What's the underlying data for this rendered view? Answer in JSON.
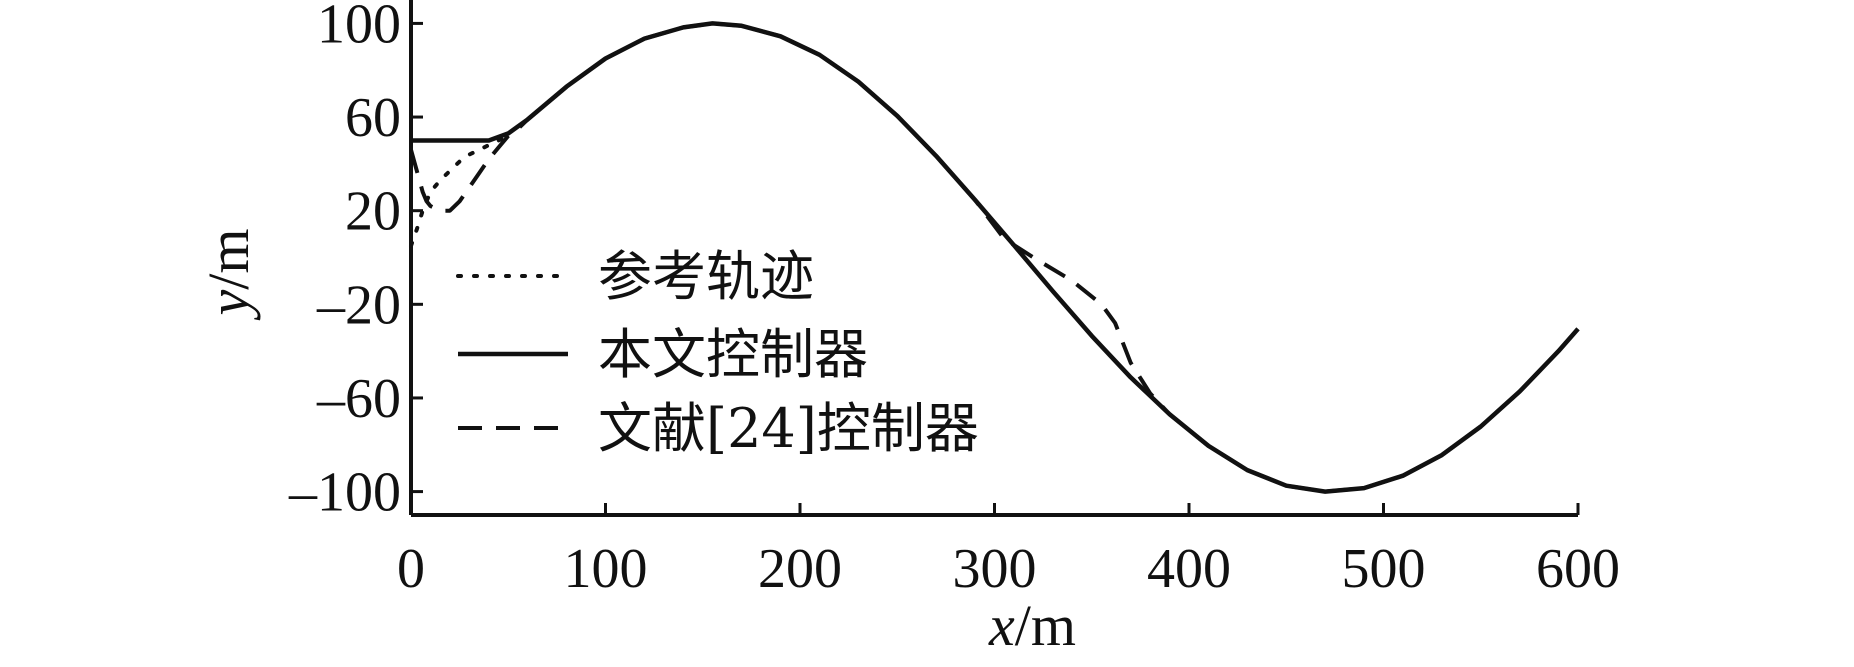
{
  "chart_data": {
    "type": "line",
    "xlabel": "x/m",
    "ylabel": "y/m",
    "xlim": [
      0,
      600
    ],
    "ylim": [
      -110,
      110
    ],
    "xticks": [
      0,
      100,
      200,
      300,
      400,
      500,
      600
    ],
    "yticks": [
      100,
      60,
      20,
      -20,
      -60,
      -100
    ],
    "grid": false,
    "legend_position": "lower-left",
    "series": [
      {
        "name": "参考轨迹",
        "style": "dotted",
        "color": "#111111",
        "x": [
          0,
          3,
          6,
          9,
          12,
          15,
          20,
          25,
          30,
          35,
          40,
          45,
          50
        ],
        "y": [
          5,
          12,
          20,
          26,
          30,
          33,
          37,
          41,
          44,
          46,
          48,
          50,
          52
        ]
      },
      {
        "name": "本文控制器",
        "style": "solid",
        "color": "#111111",
        "x": [
          0,
          40,
          50,
          60,
          80,
          100,
          120,
          140,
          155,
          170,
          190,
          210,
          230,
          250,
          270,
          290,
          310,
          330,
          350,
          370,
          390,
          410,
          430,
          450,
          470,
          490,
          510,
          530,
          550,
          570,
          590,
          600
        ],
        "y": [
          50,
          50,
          53,
          59,
          73,
          85,
          93.5,
          98.3,
          100,
          99,
          94.5,
          86.6,
          75.1,
          60.5,
          43.4,
          24.6,
          5.2,
          -14.4,
          -33.5,
          -51.2,
          -67.0,
          -80.5,
          -90.8,
          -97.5,
          -100.0,
          -98.5,
          -93.2,
          -84.4,
          -72.2,
          -57.3,
          -40.0,
          -30.5
        ]
      },
      {
        "name": "文献[24]控制器",
        "style": "dashed",
        "color": "#111111",
        "x": [
          0,
          2,
          4,
          6,
          8,
          10,
          15,
          20,
          25,
          30,
          35,
          40,
          45,
          50,
          55,
          60,
          80,
          100,
          120,
          140,
          155,
          170,
          190,
          210,
          230,
          250,
          270,
          290,
          305,
          320,
          340,
          355,
          362,
          370,
          380,
          390,
          410,
          430,
          450,
          470,
          490,
          510,
          530,
          550,
          570,
          590,
          600
        ],
        "y": [
          46,
          40,
          34,
          28,
          24,
          22,
          20,
          20,
          24,
          30,
          36,
          42,
          47,
          52,
          55,
          59,
          73,
          85,
          93.5,
          98.3,
          100,
          99,
          94.5,
          86.6,
          75.1,
          60.5,
          43.4,
          24.6,
          8,
          0,
          -10,
          -20,
          -28,
          -45,
          -58,
          -67.0,
          -80.5,
          -90.8,
          -97.5,
          -100.0,
          -98.5,
          -93.2,
          -84.4,
          -72.2,
          -57.3,
          -40.0,
          -30.5
        ]
      }
    ]
  }
}
